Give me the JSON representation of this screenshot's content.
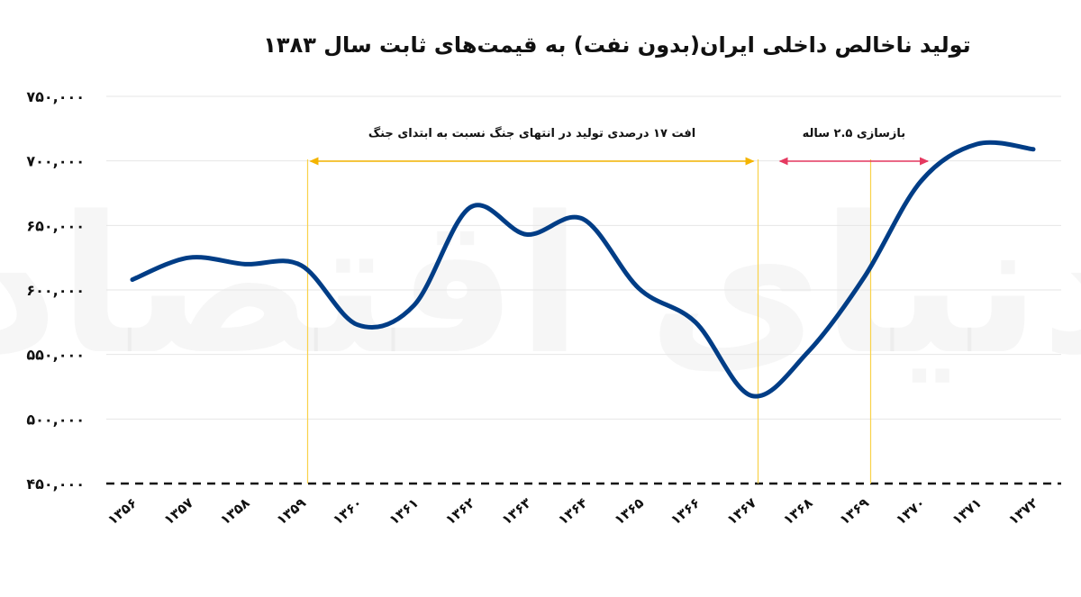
{
  "chart_data": {
    "type": "line",
    "title": "تولید ناخالص داخلی ایران(بدون نفت) به قیمت‌های ثابت سال ۱۳۸۳",
    "xlabel": "",
    "ylabel": "",
    "categories": [
      "۱۳۵۶",
      "۱۳۵۷",
      "۱۳۵۸",
      "۱۳۵۹",
      "۱۳۶۰",
      "۱۳۶۱",
      "۱۳۶۲",
      "۱۳۶۳",
      "۱۳۶۴",
      "۱۳۶۵",
      "۱۳۶۶",
      "۱۳۶۷",
      "۱۳۶۸",
      "۱۳۶۹",
      "۱۳۷۰",
      "۱۳۷۱",
      "۱۳۷۲"
    ],
    "series": [
      {
        "name": "تولید ناخالص داخلی بدون نفت",
        "values": [
          608000,
          625000,
          620000,
          619000,
          573000,
          588000,
          664000,
          643000,
          655000,
          601000,
          575000,
          518000,
          552000,
          610000,
          684000,
          713000,
          709000
        ]
      }
    ],
    "ylim": [
      450000,
      750000
    ],
    "yticks": [
      450000,
      500000,
      550000,
      600000,
      650000,
      700000,
      750000
    ],
    "ytick_labels": [
      "۴۵۰,۰۰۰",
      "۵۰۰,۰۰۰",
      "۵۵۰,۰۰۰",
      "۶۰۰,۰۰۰",
      "۶۵۰,۰۰۰",
      "۷۰۰,۰۰۰",
      "۷۵۰,۰۰۰"
    ],
    "grid": true,
    "legend": "none",
    "annotations": [
      {
        "text": "افت ۱۷ درصدی تولید در انتهای جنگ نسبت به ابتدای جنگ",
        "from": 3,
        "to": 11,
        "color": "#F4B400"
      },
      {
        "text": "بازسازی ۲.۵ ساله",
        "from": 11.5,
        "to": 14,
        "color": "#E53960"
      }
    ],
    "vertical_markers": [
      3,
      11,
      13
    ],
    "colors": {
      "line": "#003D86",
      "marker": "#F9D24A",
      "arrow_orange": "#F4B400",
      "arrow_pink": "#E53960"
    }
  },
  "watermark": "دنیای اقتصاد"
}
